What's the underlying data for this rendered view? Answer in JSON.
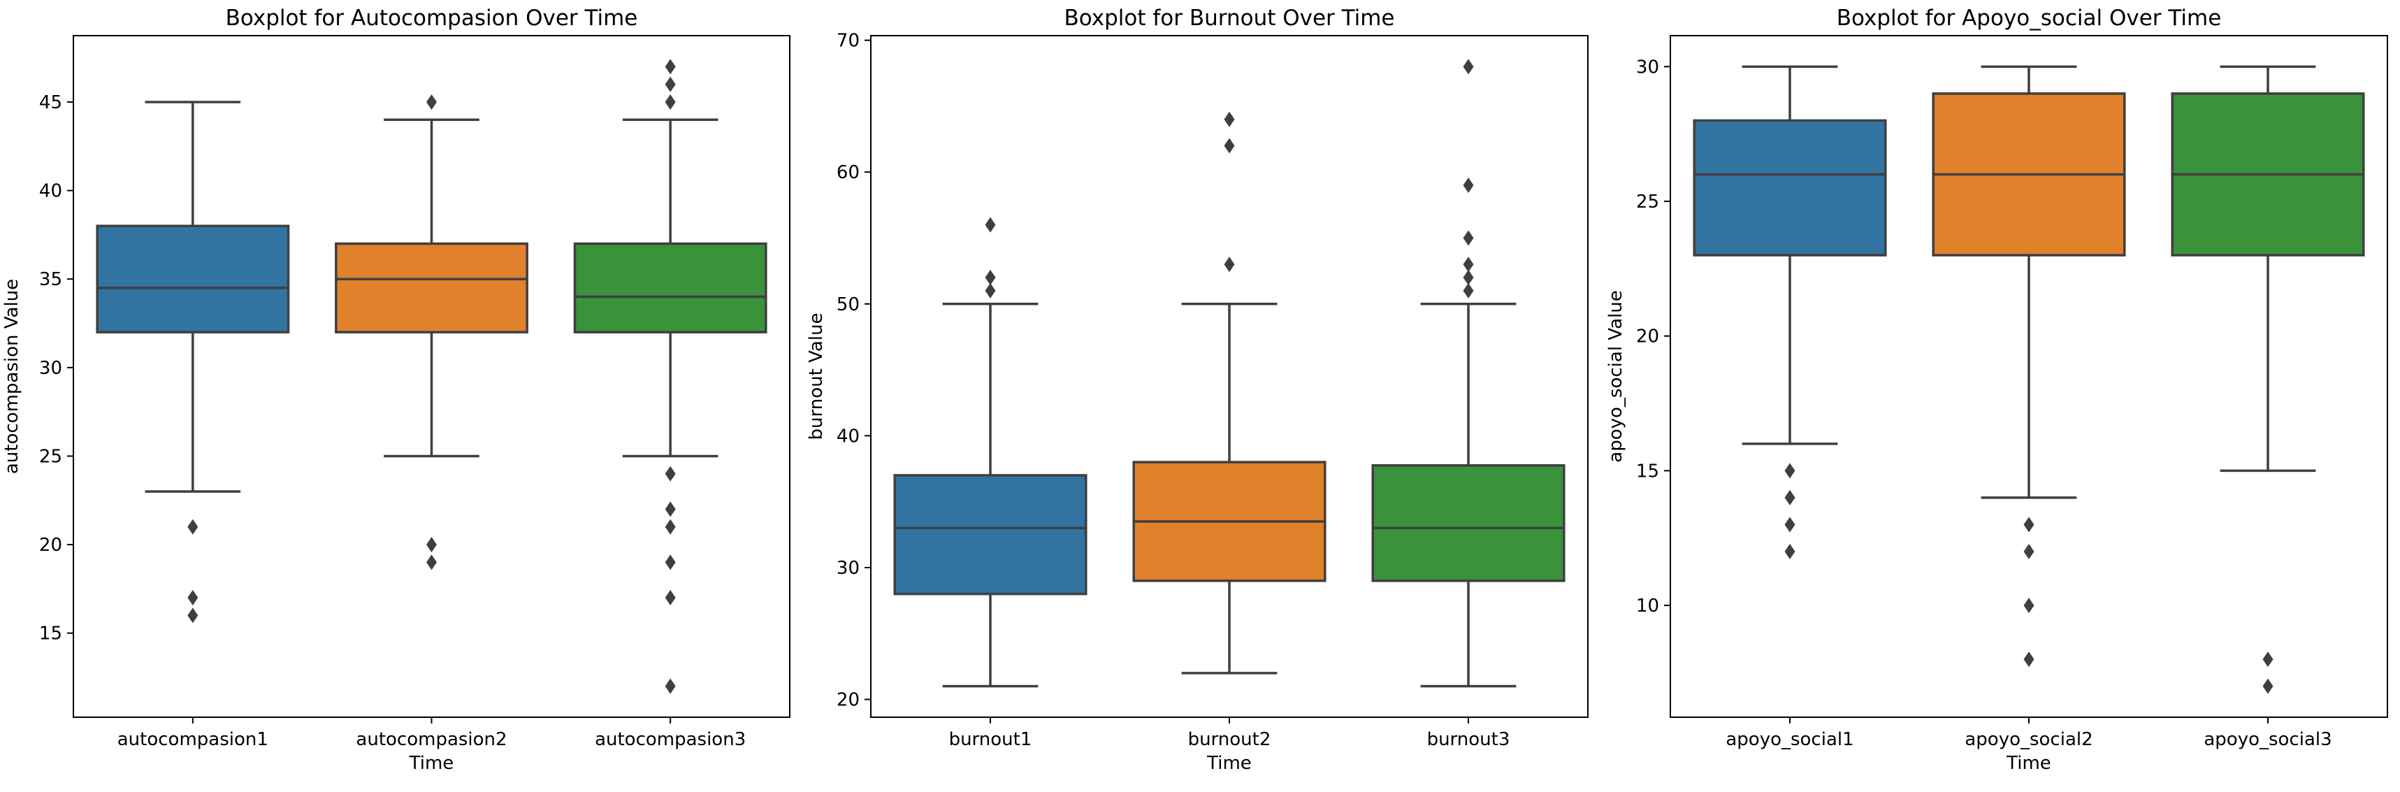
{
  "chart_data": [
    {
      "type": "box",
      "title": "Boxplot for Autocompasion Over Time",
      "xlabel": "Time",
      "ylabel": "autocompasion Value",
      "ylim": [
        10.25,
        48.75
      ],
      "yticks": [
        15,
        20,
        25,
        30,
        35,
        40,
        45
      ],
      "categories": [
        "autocompasion1",
        "autocompasion2",
        "autocompasion3"
      ],
      "boxes": [
        {
          "category": "autocompasion1",
          "whisker_low": 23,
          "q1": 32,
          "median": 34.5,
          "q3": 38,
          "whisker_high": 45,
          "outliers": [
            21,
            17,
            16
          ],
          "color": "#3274a1"
        },
        {
          "category": "autocompasion2",
          "whisker_low": 25,
          "q1": 32,
          "median": 35,
          "q3": 37,
          "whisker_high": 44,
          "outliers": [
            45,
            20,
            19
          ],
          "color": "#e1812c"
        },
        {
          "category": "autocompasion3",
          "whisker_low": 25,
          "q1": 32,
          "median": 34,
          "q3": 37,
          "whisker_high": 44,
          "outliers": [
            47,
            46,
            45,
            24,
            22,
            21,
            19,
            17,
            12
          ],
          "color": "#3a923a"
        }
      ]
    },
    {
      "type": "box",
      "title": "Boxplot for Burnout Over Time",
      "xlabel": "Time",
      "ylabel": "burnout Value",
      "ylim": [
        18.65,
        70.35
      ],
      "yticks": [
        20,
        30,
        40,
        50,
        60,
        70
      ],
      "categories": [
        "burnout1",
        "burnout2",
        "burnout3"
      ],
      "boxes": [
        {
          "category": "burnout1",
          "whisker_low": 21,
          "q1": 28,
          "median": 33,
          "q3": 37,
          "whisker_high": 50,
          "outliers": [
            56,
            52,
            51
          ],
          "color": "#3274a1"
        },
        {
          "category": "burnout2",
          "whisker_low": 22,
          "q1": 29,
          "median": 33.5,
          "q3": 38,
          "whisker_high": 50,
          "outliers": [
            64,
            62,
            53
          ],
          "color": "#e1812c"
        },
        {
          "category": "burnout3",
          "whisker_low": 21,
          "q1": 29,
          "median": 33,
          "q3": 37.75,
          "whisker_high": 50,
          "outliers": [
            68,
            59,
            55,
            53,
            52,
            51
          ],
          "color": "#3a923a"
        }
      ]
    },
    {
      "type": "box",
      "title": "Boxplot for Apoyo_social Over Time",
      "xlabel": "Time",
      "ylabel": "apoyo_social Value",
      "ylim": [
        5.85,
        31.15
      ],
      "yticks": [
        10,
        15,
        20,
        25,
        30
      ],
      "categories": [
        "apoyo_social1",
        "apoyo_social2",
        "apoyo_social3"
      ],
      "boxes": [
        {
          "category": "apoyo_social1",
          "whisker_low": 16,
          "q1": 23,
          "median": 26,
          "q3": 28,
          "whisker_high": 30,
          "outliers": [
            15,
            14,
            13,
            12
          ],
          "color": "#3274a1"
        },
        {
          "category": "apoyo_social2",
          "whisker_low": 14,
          "q1": 23,
          "median": 26,
          "q3": 29,
          "whisker_high": 30,
          "outliers": [
            13,
            12,
            10,
            8
          ],
          "color": "#e1812c"
        },
        {
          "category": "apoyo_social3",
          "whisker_low": 15,
          "q1": 23,
          "median": 26,
          "q3": 29,
          "whisker_high": 30,
          "outliers": [
            8,
            7
          ],
          "color": "#3a923a"
        }
      ]
    }
  ]
}
